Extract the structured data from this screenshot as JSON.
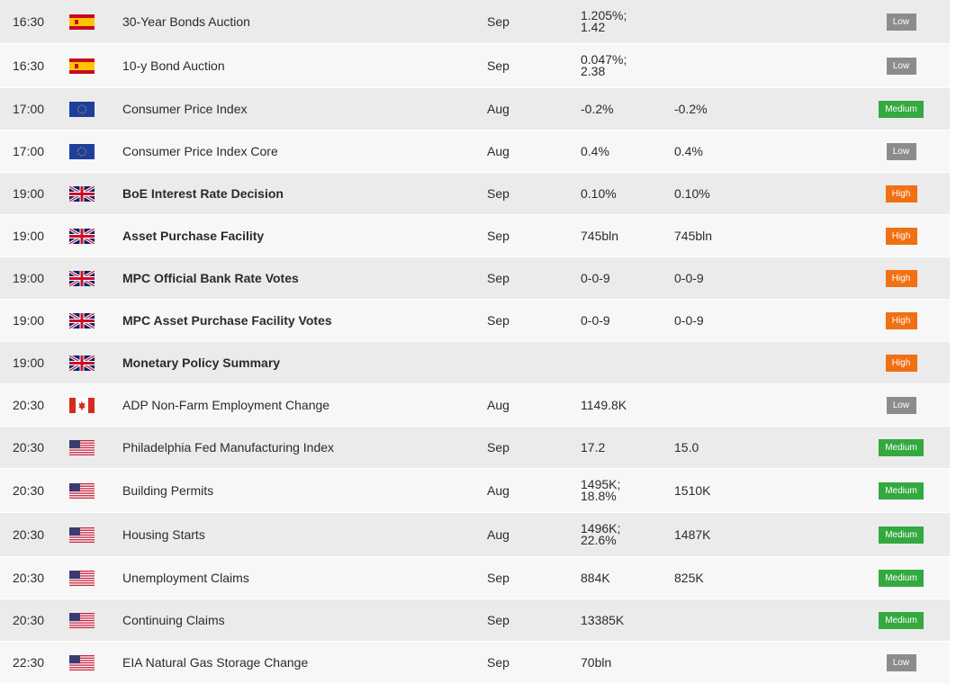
{
  "events": [
    {
      "time": "16:30",
      "country": "spain",
      "name": "30-Year Bonds Auction",
      "bold": false,
      "period": "Sep",
      "actual": [
        "1.205%;",
        "1.42"
      ],
      "forecast": "",
      "importance": "Low",
      "importance_class": "low"
    },
    {
      "time": "16:30",
      "country": "spain",
      "name": "10-y Bond Auction",
      "bold": false,
      "period": "Sep",
      "actual": [
        "0.047%;",
        "2.38"
      ],
      "forecast": "",
      "importance": "Low",
      "importance_class": "low"
    },
    {
      "time": "17:00",
      "country": "eu",
      "name": "Consumer Price Index",
      "bold": false,
      "period": "Aug",
      "actual": [
        "-0.2%"
      ],
      "forecast": "-0.2%",
      "importance": "Medium",
      "importance_class": "medium"
    },
    {
      "time": "17:00",
      "country": "eu",
      "name": "Consumer Price Index Core",
      "bold": false,
      "period": "Aug",
      "actual": [
        "0.4%"
      ],
      "forecast": "0.4%",
      "importance": "Low",
      "importance_class": "low"
    },
    {
      "time": "19:00",
      "country": "uk",
      "name": "BoE Interest Rate Decision",
      "bold": true,
      "period": "Sep",
      "actual": [
        "0.10%"
      ],
      "forecast": "0.10%",
      "importance": "High",
      "importance_class": "high"
    },
    {
      "time": "19:00",
      "country": "uk",
      "name": "Asset Purchase Facility",
      "bold": true,
      "period": "Sep",
      "actual": [
        "745bln"
      ],
      "forecast": "745bln",
      "importance": "High",
      "importance_class": "high"
    },
    {
      "time": "19:00",
      "country": "uk",
      "name": "MPC Official Bank Rate Votes",
      "bold": true,
      "period": "Sep",
      "actual": [
        "0-0-9"
      ],
      "forecast": "0-0-9",
      "importance": "High",
      "importance_class": "high"
    },
    {
      "time": "19:00",
      "country": "uk",
      "name": "MPC Asset Purchase Facility Votes",
      "bold": true,
      "period": "Sep",
      "actual": [
        "0-0-9"
      ],
      "forecast": "0-0-9",
      "importance": "High",
      "importance_class": "high"
    },
    {
      "time": "19:00",
      "country": "uk",
      "name": "Monetary Policy Summary",
      "bold": true,
      "period": "",
      "actual": [],
      "forecast": "",
      "importance": "High",
      "importance_class": "high"
    },
    {
      "time": "20:30",
      "country": "canada",
      "name": "ADP Non-Farm Employment Change",
      "bold": false,
      "period": "Aug",
      "actual": [
        "1149.8K"
      ],
      "forecast": "",
      "importance": "Low",
      "importance_class": "low"
    },
    {
      "time": "20:30",
      "country": "usa",
      "name": "Philadelphia Fed Manufacturing Index",
      "bold": false,
      "period": "Sep",
      "actual": [
        "17.2"
      ],
      "forecast": "15.0",
      "importance": "Medium",
      "importance_class": "medium"
    },
    {
      "time": "20:30",
      "country": "usa",
      "name": "Building Permits",
      "bold": false,
      "period": "Aug",
      "actual": [
        "1495K;",
        "18.8%"
      ],
      "forecast": "1510K",
      "importance": "Medium",
      "importance_class": "medium"
    },
    {
      "time": "20:30",
      "country": "usa",
      "name": "Housing Starts",
      "bold": false,
      "period": "Aug",
      "actual": [
        "1496K;",
        "22.6%"
      ],
      "forecast": "1487K",
      "importance": "Medium",
      "importance_class": "medium"
    },
    {
      "time": "20:30",
      "country": "usa",
      "name": "Unemployment Claims",
      "bold": false,
      "period": "Sep",
      "actual": [
        "884K"
      ],
      "forecast": "825K",
      "importance": "Medium",
      "importance_class": "medium"
    },
    {
      "time": "20:30",
      "country": "usa",
      "name": "Continuing Claims",
      "bold": false,
      "period": "Sep",
      "actual": [
        "13385K"
      ],
      "forecast": "",
      "importance": "Medium",
      "importance_class": "medium"
    },
    {
      "time": "22:30",
      "country": "usa",
      "name": "EIA Natural Gas Storage Change",
      "bold": false,
      "period": "Sep",
      "actual": [
        "70bln"
      ],
      "forecast": "",
      "importance": "Low",
      "importance_class": "low"
    }
  ]
}
